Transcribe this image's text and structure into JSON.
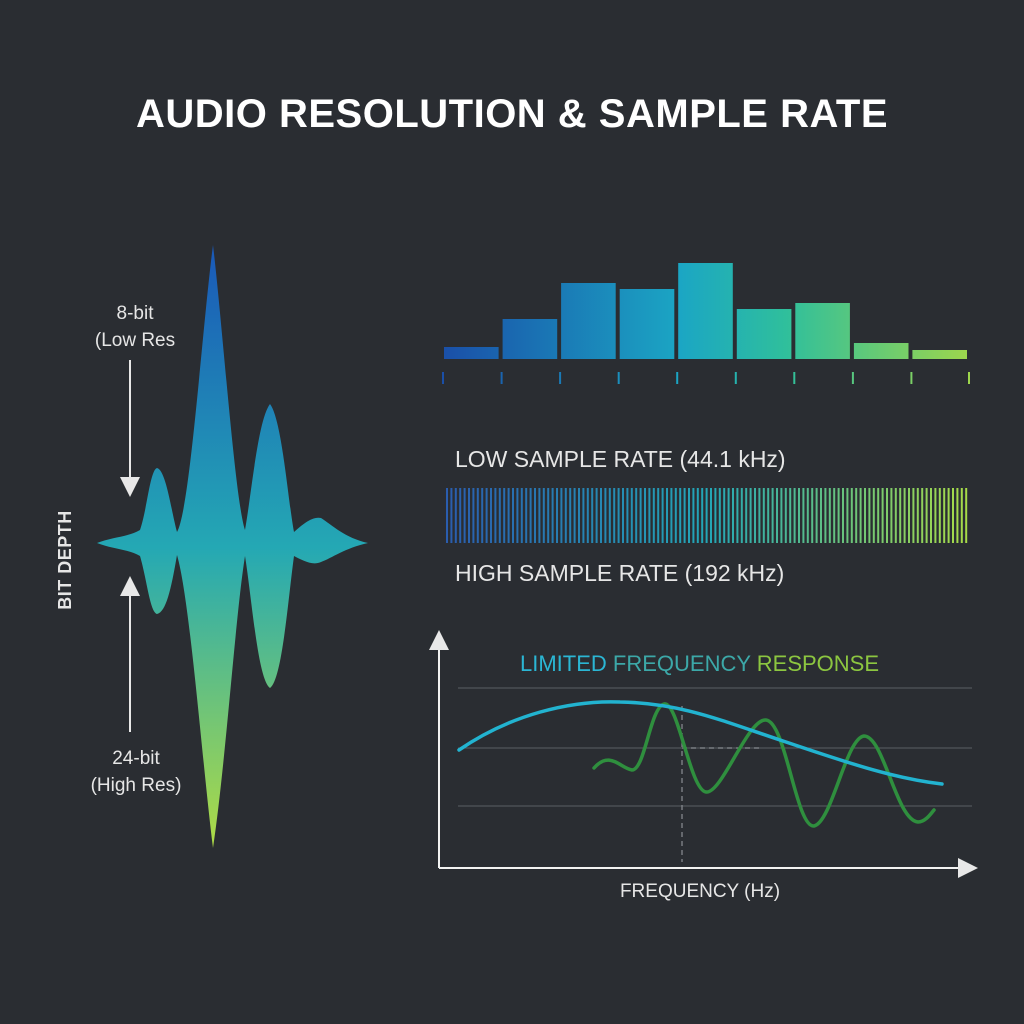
{
  "title": "AUDIO RESOLUTION & SAMPLE RATE",
  "bit_depth": {
    "axis_label": "BIT DEPTH",
    "low_label_line1": "8-bit",
    "low_label_line2": "(Low Res",
    "high_label_line1": "24-bit",
    "high_label_line2": "(High Res)"
  },
  "histogram": {
    "bar_values": [
      12,
      40,
      76,
      70,
      96,
      50,
      56,
      16,
      9
    ]
  },
  "sample_rate": {
    "low_label": "LOW SAMPLE RATE (44.1 kHz)",
    "high_label": "HIGH SAMPLE RATE (192 kHz)"
  },
  "frequency_response": {
    "title_part1": "LIMITED",
    "title_part2": " FREQUENCY",
    "title_part3": " RESPONSE",
    "x_label": "FREQUENCY (Hz)"
  },
  "colors": {
    "background": "#2a2d32",
    "gradient_blue": "#1f5fb8",
    "gradient_teal": "#2bb0b0",
    "gradient_green": "#a6d74a",
    "limited_curve": "#22b3d0",
    "full_curve": "#2f8f3e",
    "grid": "#5a5e64"
  }
}
